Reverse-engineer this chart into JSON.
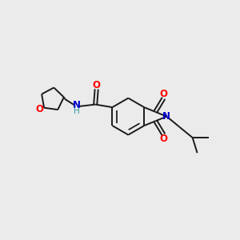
{
  "bg_color": "#ebebeb",
  "bond_color": "#1a1a1a",
  "atom_colors": {
    "O": "#ff0000",
    "N": "#0000cc",
    "H": "#404040",
    "C": "#1a1a1a"
  },
  "lw": 1.4,
  "dbo": 0.09
}
